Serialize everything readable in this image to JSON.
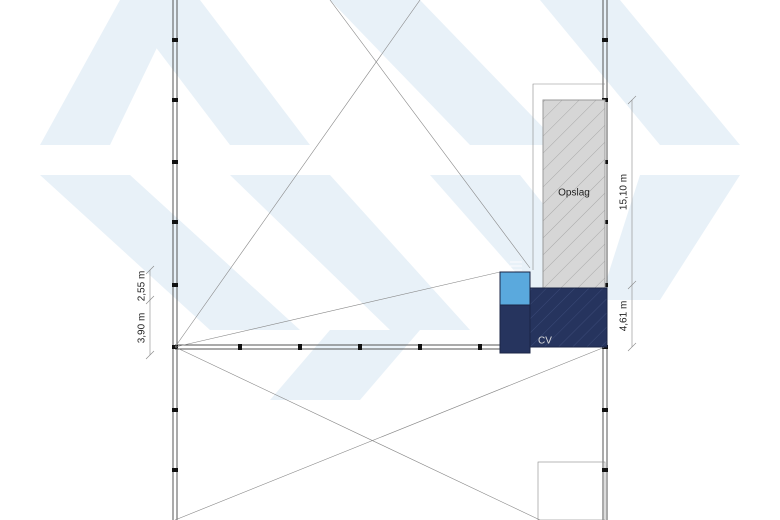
{
  "plan": {
    "rooms": [
      {
        "label": "Opslag"
      },
      {
        "label": "CV"
      }
    ],
    "dimensions": [
      {
        "label": "15,10 m"
      },
      {
        "label": "4,61 m"
      },
      {
        "label": "2,55 m"
      },
      {
        "label": "3,90 m"
      }
    ]
  }
}
